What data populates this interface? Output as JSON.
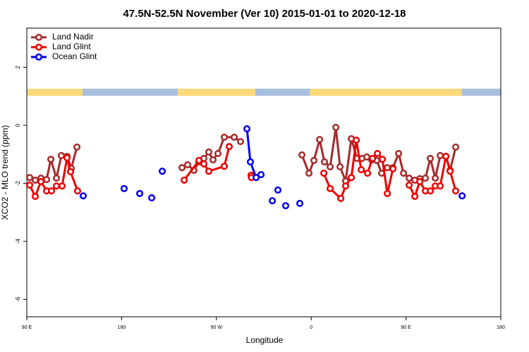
{
  "chart_data": {
    "type": "line",
    "title": "47.5N-52.5N November (Ver 10)   2015-01-01 to 2020-12-18",
    "xlabel": "Longitude",
    "ylabel": "XCO2 - MLO trend (ppm)",
    "xlim": [
      90,
      540
    ],
    "ylim": [
      -6.6,
      3.35
    ],
    "xticks": [
      {
        "value": 90,
        "label": "90 E"
      },
      180,
      {
        "value": 270,
        "label": "90 W"
      },
      {
        "value": 360,
        "label": "0"
      },
      {
        "value": 450,
        "label": "90 E"
      },
      {
        "value": 540,
        "label": "180"
      }
    ],
    "yticks": [
      -6,
      -4,
      -2,
      0,
      2
    ],
    "legend": "top-left",
    "series": [
      {
        "name": "Land Nadir",
        "color": "#a52a2a",
        "x": [
          92.7,
          98.0,
          103.4,
          108.8,
          112.8,
          118.1,
          122.8,
          128.2,
          132.2,
          137.6,
          null,
          237.4,
          242.7,
          248.7,
          253.4,
          258.1,
          262.8,
          266.8,
          271.5,
          277.5,
          286.9,
          292.9,
          null,
          351.2,
          357.9,
          362.6,
          368.0,
          372.6,
          378.0,
          383.4,
          387.4,
          392.7,
          398.1,
          403.5,
          408.2,
          412.8,
          417.5,
          422.2,
          426.9,
          432.3,
          437.6,
          443.0,
          447.7,
          453.0,
          458.4,
          463.1,
          468.4,
          473.1,
          477.8,
          482.5,
          487.9,
          491.9,
          497.2
        ],
        "values": [
          -1.8,
          -1.89,
          -1.82,
          -1.87,
          -1.17,
          -1.82,
          -1.04,
          -1.07,
          -1.48,
          -0.75,
          null,
          -1.46,
          -1.36,
          -1.55,
          -1.26,
          -1.14,
          -0.92,
          -1.19,
          -0.97,
          -0.41,
          -0.41,
          -0.56,
          null,
          -1.02,
          -1.65,
          -1.21,
          -0.49,
          -1.26,
          -1.43,
          -0.07,
          -1.43,
          -1.92,
          -0.46,
          -1.14,
          -1.14,
          -1.09,
          -1.19,
          -1.21,
          -1.65,
          -1.46,
          -1.46,
          -0.97,
          -1.65,
          -1.82,
          -1.89,
          -1.84,
          -1.82,
          -1.14,
          -1.82,
          -1.04,
          -1.07,
          -1.55,
          -0.75
        ]
      },
      {
        "name": "Land Glint",
        "color": "#ee0000",
        "x": [
          92.7,
          98.0,
          103.4,
          108.8,
          113.4,
          118.1,
          123.5,
          128.2,
          131.5,
          138.2,
          null,
          239.4,
          253.4,
          258.1,
          262.8,
          277.5,
          282.2,
          null,
          302.9,
          303.3,
          null,
          372.0,
          378.0,
          388.1,
          392.7,
          398.1,
          402.8,
          407.5,
          413.5,
          418.2,
          422.9,
          427.6,
          432.3,
          437.6,
          null,
          453.0,
          458.4,
          463.1,
          468.4,
          473.1,
          477.8,
          482.5,
          487.9,
          491.9,
          497.2
        ],
        "values": [
          -2.06,
          -2.45,
          -1.94,
          -2.26,
          -2.26,
          -2.09,
          -2.09,
          -1.12,
          -1.6,
          -2.26,
          null,
          -1.89,
          -1.21,
          -1.33,
          -1.58,
          -1.41,
          -0.73,
          null,
          -1.72,
          -1.8,
          null,
          -1.65,
          -2.18,
          -2.52,
          -2.09,
          -1.8,
          -0.51,
          -1.53,
          -1.65,
          -1.14,
          -0.97,
          -1.17,
          -2.35,
          -1.5,
          null,
          -2.06,
          -2.45,
          -1.94,
          -2.26,
          -2.26,
          -2.09,
          -2.09,
          -1.07,
          -1.58,
          -2.26
        ]
      },
      {
        "name": "Ocean Glint",
        "color": "#0000ee",
        "x": [
          143.6,
          null,
          182.4,
          null,
          197.2,
          null,
          208.6,
          null,
          218.6,
          null,
          299.0,
          302.3,
          307.7,
          312.4,
          null,
          323.1,
          null,
          328.4,
          null,
          335.8,
          null,
          349.2,
          null,
          503.3
        ],
        "values": [
          -2.43,
          null,
          -2.18,
          null,
          -2.35,
          null,
          -2.5,
          null,
          -1.58,
          null,
          -0.12,
          -1.26,
          -1.8,
          -1.7,
          null,
          -2.6,
          null,
          -2.23,
          null,
          -2.77,
          null,
          -2.69,
          null,
          -2.43
        ]
      }
    ]
  }
}
